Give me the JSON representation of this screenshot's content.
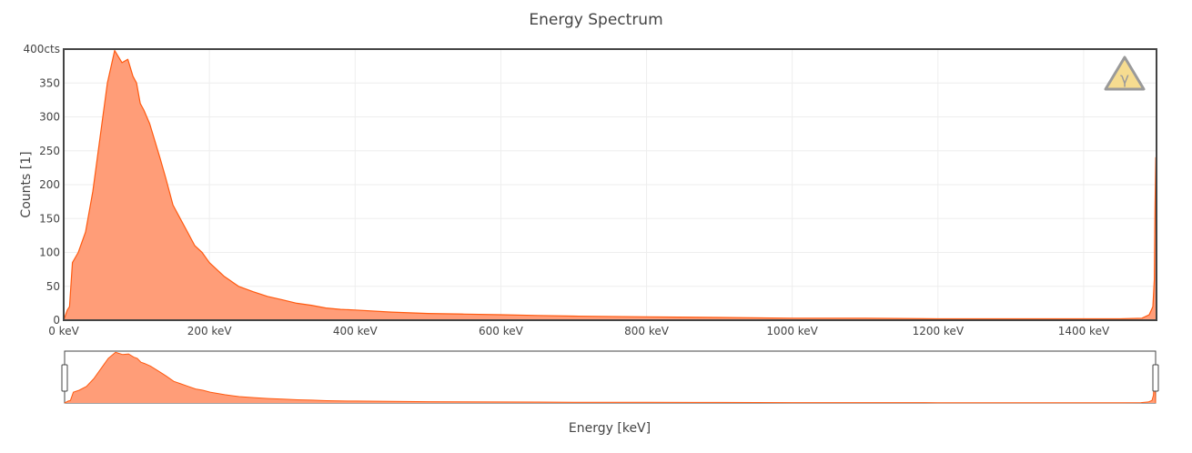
{
  "chart_data": {
    "type": "area",
    "title": "Energy Spectrum",
    "xlabel": "Energy [keV]",
    "ylabel": "Counts [1]",
    "xlim": [
      0,
      1500
    ],
    "ylim": [
      0,
      400
    ],
    "x_ticks": [
      {
        "value": 0,
        "label": "0 keV"
      },
      {
        "value": 200,
        "label": "200 keV"
      },
      {
        "value": 400,
        "label": "400 keV"
      },
      {
        "value": 600,
        "label": "600 keV"
      },
      {
        "value": 800,
        "label": "800 keV"
      },
      {
        "value": 1000,
        "label": "1000 keV"
      },
      {
        "value": 1200,
        "label": "1200 keV"
      },
      {
        "value": 1400,
        "label": "1400 keV"
      }
    ],
    "y_ticks": [
      {
        "value": 0,
        "label": "0"
      },
      {
        "value": 50,
        "label": "50"
      },
      {
        "value": 100,
        "label": "100"
      },
      {
        "value": 150,
        "label": "150"
      },
      {
        "value": 200,
        "label": "200"
      },
      {
        "value": 250,
        "label": "250"
      },
      {
        "value": 300,
        "label": "300"
      },
      {
        "value": 350,
        "label": "350"
      },
      {
        "value": 400,
        "label": "400cts"
      }
    ],
    "grid": true,
    "rangeslider": true,
    "series": [
      {
        "color": "#ff5a10",
        "fill": "#ff9d78",
        "x": [
          0,
          5,
          8,
          12,
          20,
          30,
          40,
          50,
          60,
          70,
          80,
          88,
          95,
          100,
          105,
          110,
          118,
          125,
          132,
          140,
          150,
          160,
          170,
          180,
          190,
          200,
          220,
          240,
          260,
          280,
          300,
          320,
          340,
          360,
          380,
          400,
          450,
          500,
          550,
          600,
          650,
          700,
          800,
          900,
          1000,
          1100,
          1200,
          1300,
          1400,
          1450,
          1480,
          1490,
          1495,
          1497,
          1498,
          1499,
          1500
        ],
        "y": [
          0,
          15,
          20,
          85,
          100,
          130,
          190,
          270,
          350,
          398,
          380,
          385,
          360,
          350,
          320,
          310,
          290,
          265,
          240,
          210,
          170,
          150,
          130,
          110,
          100,
          85,
          65,
          50,
          42,
          35,
          30,
          25,
          22,
          18,
          16,
          15,
          12,
          10,
          9,
          8,
          7,
          6,
          5,
          4,
          3,
          3,
          2,
          2,
          2,
          2,
          3,
          8,
          20,
          60,
          170,
          240,
          0
        ]
      }
    ]
  },
  "colors": {
    "line": "#ff5a10",
    "fill": "#ff9d78",
    "grid": "#eeeeee",
    "axis": "#444444",
    "badge_fill": "#f6dc90",
    "badge_stroke": "#9a9a9a"
  },
  "badge": {
    "icon": "gamma-warning-icon",
    "symbol": "γ"
  }
}
